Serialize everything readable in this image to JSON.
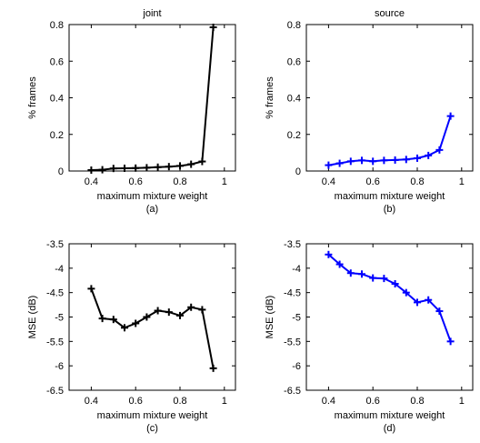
{
  "chart_data": [
    {
      "type": "line",
      "title": "joint",
      "xlabel": "maximum mixture weight",
      "ylabel": "% frames",
      "caption": "(a)",
      "xlim": [
        0.3,
        1.05
      ],
      "ylim": [
        0,
        0.8
      ],
      "xticks": [
        "0.4",
        "0.6",
        "0.8",
        "1"
      ],
      "yticks": [
        "0",
        "0.2",
        "0.4",
        "0.6",
        "0.8"
      ],
      "color": "#000000",
      "x": [
        0.4,
        0.45,
        0.5,
        0.55,
        0.6,
        0.65,
        0.7,
        0.75,
        0.8,
        0.85,
        0.9,
        0.95
      ],
      "y": [
        0.005,
        0.007,
        0.014,
        0.015,
        0.016,
        0.018,
        0.021,
        0.024,
        0.028,
        0.037,
        0.052,
        0.785
      ]
    },
    {
      "type": "line",
      "title": "source",
      "xlabel": "maximum mixture weight",
      "ylabel": "% frames",
      "caption": "(b)",
      "xlim": [
        0.3,
        1.05
      ],
      "ylim": [
        0,
        0.8
      ],
      "xticks": [
        "0.4",
        "0.6",
        "0.8",
        "1"
      ],
      "yticks": [
        "0",
        "0.2",
        "0.4",
        "0.6",
        "0.8"
      ],
      "color": "#0000ff",
      "x": [
        0.4,
        0.45,
        0.5,
        0.55,
        0.6,
        0.65,
        0.7,
        0.75,
        0.8,
        0.85,
        0.9,
        0.95
      ],
      "y": [
        0.032,
        0.042,
        0.053,
        0.058,
        0.053,
        0.058,
        0.06,
        0.063,
        0.07,
        0.085,
        0.115,
        0.3
      ]
    },
    {
      "type": "line",
      "title": "",
      "xlabel": "maximum mixture weight",
      "ylabel": "MSE (dB)",
      "caption": "(c)",
      "xlim": [
        0.3,
        1.05
      ],
      "ylim": [
        -6.5,
        -3.5
      ],
      "xticks": [
        "0.4",
        "0.6",
        "0.8",
        "1"
      ],
      "yticks": [
        "-3.5",
        "-4",
        "-4.5",
        "-5",
        "-5.5",
        "-6",
        "-6.5"
      ],
      "color": "#000000",
      "x": [
        0.4,
        0.45,
        0.5,
        0.55,
        0.6,
        0.65,
        0.7,
        0.75,
        0.8,
        0.85,
        0.9,
        0.95
      ],
      "y": [
        -4.42,
        -5.03,
        -5.05,
        -5.22,
        -5.13,
        -5.0,
        -4.87,
        -4.9,
        -4.97,
        -4.8,
        -4.85,
        -6.05
      ]
    },
    {
      "type": "line",
      "title": "",
      "xlabel": "maximum mixture weight",
      "ylabel": "MSE (dB)",
      "caption": "(d)",
      "xlim": [
        0.3,
        1.05
      ],
      "ylim": [
        -6.5,
        -3.5
      ],
      "xticks": [
        "0.4",
        "0.6",
        "0.8",
        "1"
      ],
      "yticks": [
        "-3.5",
        "-4",
        "-4.5",
        "-5",
        "-5.5",
        "-6",
        "-6.5"
      ],
      "color": "#0000ff",
      "x": [
        0.4,
        0.45,
        0.5,
        0.55,
        0.6,
        0.65,
        0.7,
        0.75,
        0.8,
        0.85,
        0.9,
        0.95
      ],
      "y": [
        -3.72,
        -3.92,
        -4.1,
        -4.12,
        -4.2,
        -4.21,
        -4.32,
        -4.5,
        -4.7,
        -4.65,
        -4.88,
        -5.5
      ]
    }
  ]
}
